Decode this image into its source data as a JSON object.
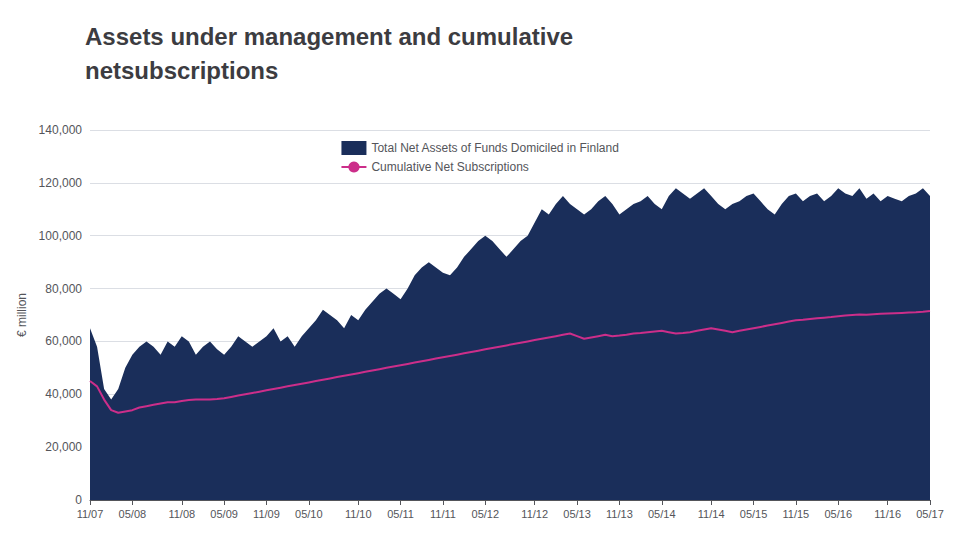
{
  "chart_data": {
    "type": "line",
    "title": "Assets under management and cumulative\nnetsubscriptions",
    "y_label": "€ million",
    "ylim": [
      0,
      140000
    ],
    "yticks": [
      0,
      {
        "value": 20000,
        "label": "20,000"
      },
      {
        "value": 40000,
        "label": "40,000"
      },
      {
        "value": 60000,
        "label": "60,000"
      },
      {
        "value": 80000,
        "label": "80,000"
      },
      {
        "value": 100000,
        "label": "100,000"
      },
      {
        "value": 120000,
        "label": "120,000"
      },
      {
        "value": 140000,
        "label": "140,000"
      }
    ],
    "grid": true,
    "legend": "upper center",
    "categories": [
      "11/07",
      null,
      null,
      null,
      null,
      null,
      "05/08",
      null,
      null,
      null,
      null,
      null,
      null,
      "11/08",
      null,
      null,
      null,
      null,
      null,
      "05/09",
      null,
      null,
      null,
      null,
      null,
      "11/09",
      null,
      null,
      null,
      null,
      null,
      "05/10",
      null,
      null,
      null,
      null,
      null,
      null,
      "11/10",
      null,
      null,
      null,
      null,
      null,
      "05/11",
      null,
      null,
      null,
      null,
      null,
      "11/11",
      null,
      null,
      null,
      null,
      null,
      "05/12",
      null,
      null,
      null,
      null,
      null,
      null,
      "11/12",
      null,
      null,
      null,
      null,
      null,
      "05/13",
      null,
      null,
      null,
      null,
      null,
      "11/13",
      null,
      null,
      null,
      null,
      null,
      "05/14",
      null,
      null,
      null,
      null,
      null,
      null,
      "11/14",
      null,
      null,
      null,
      null,
      null,
      "05/15",
      null,
      null,
      null,
      null,
      null,
      "11/15",
      null,
      null,
      null,
      null,
      null,
      "05/16",
      null,
      null,
      null,
      null,
      null,
      null,
      "11/16",
      null,
      null,
      null,
      null,
      null,
      "05/17"
    ],
    "series": [
      {
        "name": "Total Net Assets of Funds Domiciled in Finland",
        "type": "area",
        "color": "#1a2e5a",
        "values": [
          65000,
          58000,
          42000,
          38000,
          42000,
          50000,
          55000,
          58000,
          60000,
          58000,
          55000,
          60000,
          58000,
          62000,
          60000,
          55000,
          58000,
          60000,
          57000,
          55000,
          58000,
          62000,
          60000,
          58000,
          60000,
          62000,
          65000,
          60000,
          62000,
          58000,
          62000,
          65000,
          68000,
          72000,
          70000,
          68000,
          65000,
          70000,
          68000,
          72000,
          75000,
          78000,
          80000,
          78000,
          76000,
          80000,
          85000,
          88000,
          90000,
          88000,
          86000,
          85000,
          88000,
          92000,
          95000,
          98000,
          100000,
          98000,
          95000,
          92000,
          95000,
          98000,
          100000,
          105000,
          110000,
          108000,
          112000,
          115000,
          112000,
          110000,
          108000,
          110000,
          113000,
          115000,
          112000,
          108000,
          110000,
          112000,
          113000,
          115000,
          112000,
          110000,
          115000,
          118000,
          116000,
          114000,
          116000,
          118000,
          115000,
          112000,
          110000,
          112000,
          113000,
          115000,
          116000,
          113000,
          110000,
          108000,
          112000,
          115000,
          116000,
          113000,
          115000,
          116000,
          113000,
          115000,
          118000,
          116000,
          115000,
          118000,
          114000,
          116000,
          113000,
          115000,
          114000,
          113000,
          115000,
          116000,
          118000,
          115000
        ]
      },
      {
        "name": "Cumulative Net Subscriptions",
        "type": "line",
        "color": "#cc2e8a",
        "values": [
          45000,
          43000,
          38000,
          34000,
          33000,
          33500,
          34000,
          35000,
          35500,
          36000,
          36500,
          37000,
          37000,
          37500,
          37800,
          38000,
          38000,
          38000,
          38200,
          38500,
          39000,
          39500,
          40000,
          40500,
          41000,
          41500,
          42000,
          42500,
          43000,
          43500,
          44000,
          44500,
          45000,
          45500,
          46000,
          46500,
          47000,
          47500,
          48000,
          48500,
          49000,
          49500,
          50000,
          50500,
          51000,
          51500,
          52000,
          52500,
          53000,
          53500,
          54000,
          54500,
          55000,
          55500,
          56000,
          56500,
          57000,
          57500,
          58000,
          58500,
          59000,
          59500,
          60000,
          60500,
          61000,
          61500,
          62000,
          62500,
          63000,
          62000,
          61000,
          61500,
          62000,
          62500,
          62000,
          62200,
          62500,
          63000,
          63200,
          63500,
          63800,
          64000,
          63500,
          63000,
          63200,
          63500,
          64000,
          64500,
          65000,
          64500,
          64000,
          63500,
          64000,
          64500,
          65000,
          65500,
          66000,
          66500,
          67000,
          67500,
          68000,
          68200,
          68500,
          68800,
          69000,
          69200,
          69500,
          69800,
          70000,
          70200,
          70100,
          70300,
          70500,
          70600,
          70700,
          70800,
          70900,
          71000,
          71200,
          71500
        ]
      }
    ]
  }
}
